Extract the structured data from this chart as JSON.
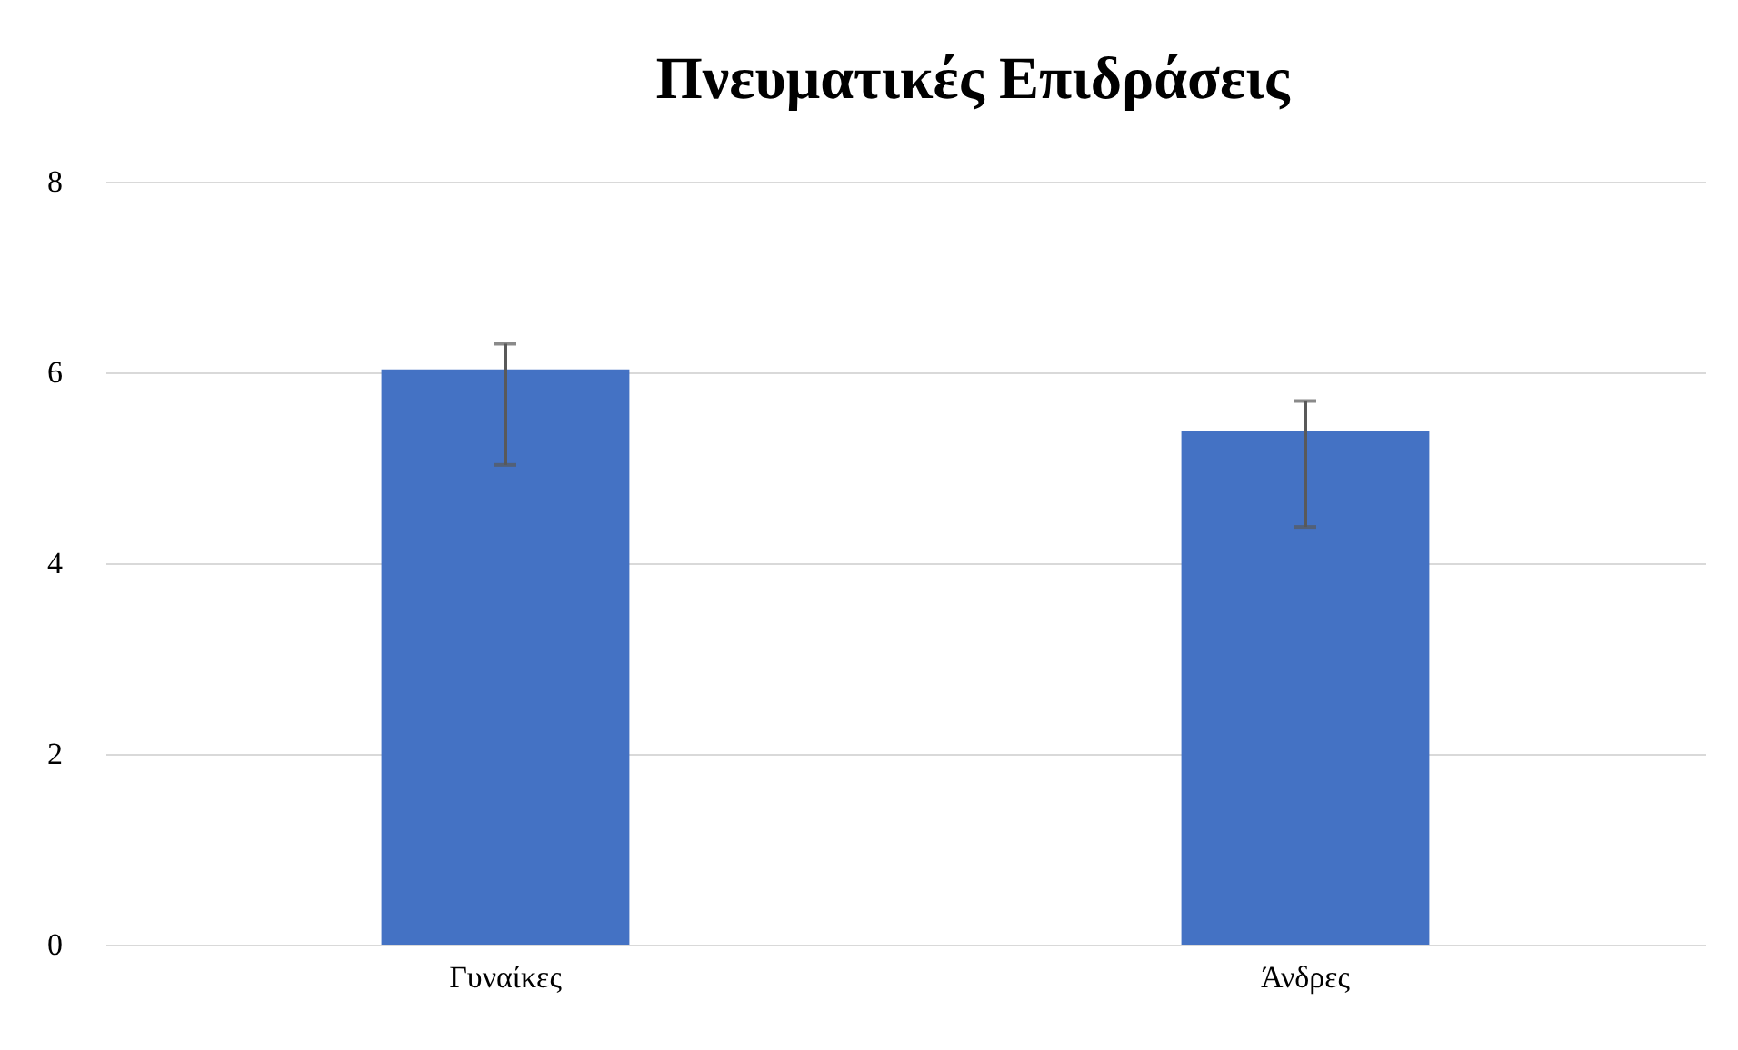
{
  "chart_data": {
    "type": "bar",
    "title": "Πνευματικές Επιδράσεις",
    "categories": [
      "Γυναίκες",
      "Άνδρες"
    ],
    "values": [
      6.03,
      5.38
    ],
    "errors": [
      [
        5.03,
        6.3
      ],
      [
        4.38,
        5.7
      ]
    ],
    "color": "#4472c4",
    "ylim": [
      0,
      8
    ],
    "yticks": [
      0,
      2,
      4,
      6,
      8
    ],
    "grid": "y"
  }
}
